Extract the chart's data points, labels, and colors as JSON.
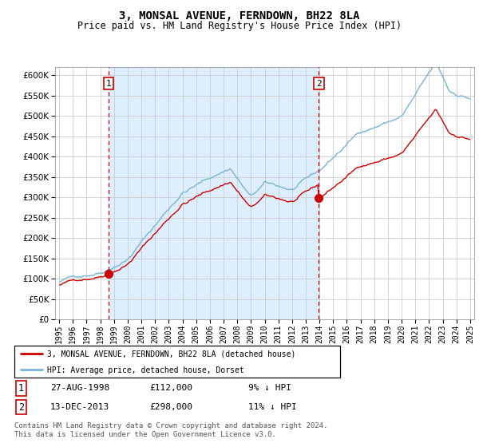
{
  "title": "3, MONSAL AVENUE, FERNDOWN, BH22 8LA",
  "subtitle": "Price paid vs. HM Land Registry's House Price Index (HPI)",
  "legend_line1": "3, MONSAL AVENUE, FERNDOWN, BH22 8LA (detached house)",
  "legend_line2": "HPI: Average price, detached house, Dorset",
  "sale1_date": "27-AUG-1998",
  "sale1_price": 112000,
  "sale1_label": "1",
  "sale1_pct": "9% ↓ HPI",
  "sale2_date": "13-DEC-2013",
  "sale2_price": 298000,
  "sale2_label": "2",
  "sale2_pct": "11% ↓ HPI",
  "footer": "Contains HM Land Registry data © Crown copyright and database right 2024.\nThis data is licensed under the Open Government Licence v3.0.",
  "hpi_color": "#7ab3d8",
  "property_color": "#cc0000",
  "marker_color": "#cc0000",
  "vline_color": "#cc0000",
  "span_color": "#ddeeff",
  "grid_color": "#cccccc",
  "ylim": [
    0,
    620000
  ],
  "yticks": [
    0,
    50000,
    100000,
    150000,
    200000,
    250000,
    300000,
    350000,
    400000,
    450000,
    500000,
    550000,
    600000
  ]
}
